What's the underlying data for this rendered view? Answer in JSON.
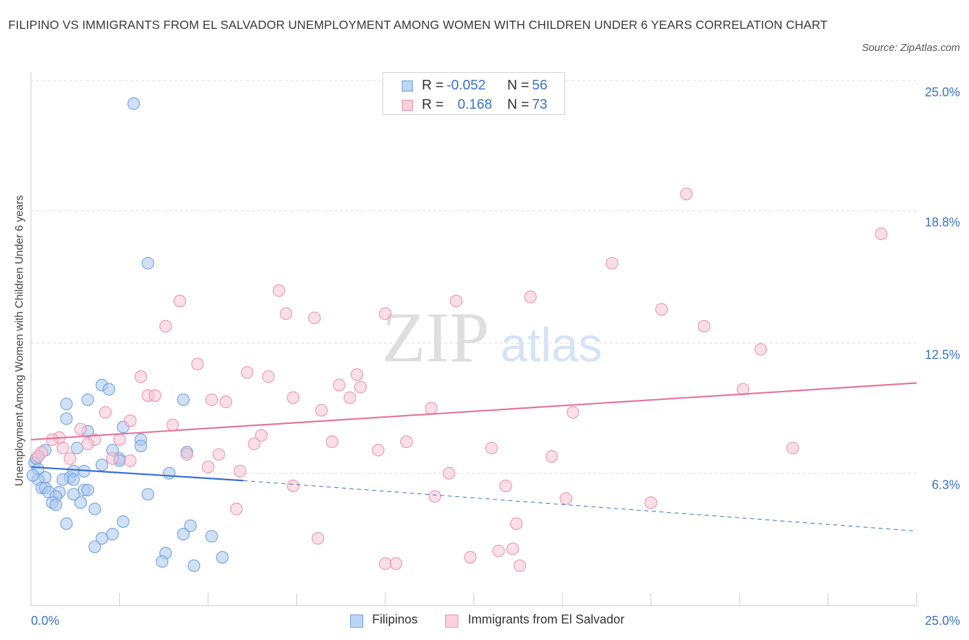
{
  "title": "FILIPINO VS IMMIGRANTS FROM EL SALVADOR UNEMPLOYMENT AMONG WOMEN WITH CHILDREN UNDER 6 YEARS CORRELATION CHART",
  "source": "Source: ZipAtlas.com",
  "watermark": {
    "zip": "ZIP",
    "atlas": "atlas"
  },
  "legend": {
    "r_label": "R =",
    "n_label": "N =",
    "entries": [
      {
        "name": "Filipinos",
        "r": "-0.052",
        "n": "56",
        "color": "#a9c8f0",
        "stroke": "#6d9ede"
      },
      {
        "name": "Immigrants from El Salvador",
        "r": "0.168",
        "n": "73",
        "color": "#f8c5d5",
        "stroke": "#e892ad"
      }
    ]
  },
  "chart_data": {
    "type": "scatter",
    "title": "FILIPINO VS IMMIGRANTS FROM EL SALVADOR UNEMPLOYMENT AMONG WOMEN WITH CHILDREN UNDER 6 YEARS CORRELATION CHART",
    "ylabel": "Unemployment Among Women with Children Under 6 years",
    "xlabel": "",
    "xlim": [
      0,
      25
    ],
    "ylim": [
      0,
      25
    ],
    "x_tick_labels": [
      {
        "value": 0,
        "label": "0.0%"
      },
      {
        "value": 25,
        "label": "25.0%"
      }
    ],
    "y_tick_labels": [
      {
        "value": 6.3,
        "label": "6.3%"
      },
      {
        "value": 12.5,
        "label": "12.5%"
      },
      {
        "value": 18.8,
        "label": "18.8%"
      },
      {
        "value": 25.0,
        "label": "25.0%"
      }
    ],
    "grid": true,
    "legend_position": "top-center",
    "series": [
      {
        "name": "Filipinos",
        "color": "#a9c8f0",
        "stroke": "#6d9ede",
        "trend": {
          "x0": 0,
          "y0": 6.6,
          "x1": 6,
          "y1": 5.95,
          "dashed_to_x": 25,
          "dashed_to_y": 3.55,
          "color": "#2f6fd0"
        },
        "points": [
          [
            2.9,
            23.9
          ],
          [
            3.3,
            16.3
          ],
          [
            1.0,
            9.6
          ],
          [
            0.4,
            7.4
          ],
          [
            0.1,
            6.8
          ],
          [
            0.2,
            6.5
          ],
          [
            0.4,
            6.1
          ],
          [
            0.2,
            6.0
          ],
          [
            0.3,
            5.6
          ],
          [
            0.4,
            5.6
          ],
          [
            0.5,
            5.4
          ],
          [
            0.8,
            5.4
          ],
          [
            0.7,
            5.2
          ],
          [
            0.6,
            4.9
          ],
          [
            0.7,
            4.8
          ],
          [
            1.1,
            6.1
          ],
          [
            1.2,
            6.4
          ],
          [
            1.3,
            7.5
          ],
          [
            1.0,
            8.9
          ],
          [
            1.6,
            9.8
          ],
          [
            2.0,
            10.5
          ],
          [
            2.2,
            10.3
          ],
          [
            2.6,
            8.5
          ],
          [
            1.6,
            8.3
          ],
          [
            2.3,
            7.4
          ],
          [
            2.5,
            7.0
          ],
          [
            2.5,
            6.9
          ],
          [
            3.1,
            7.9
          ],
          [
            3.1,
            7.6
          ],
          [
            2.0,
            6.7
          ],
          [
            1.5,
            6.4
          ],
          [
            0.9,
            6.0
          ],
          [
            1.2,
            6.0
          ],
          [
            1.5,
            5.5
          ],
          [
            1.6,
            5.5
          ],
          [
            1.2,
            5.3
          ],
          [
            1.4,
            4.9
          ],
          [
            1.8,
            4.6
          ],
          [
            3.3,
            5.3
          ],
          [
            2.6,
            4.0
          ],
          [
            1.0,
            3.9
          ],
          [
            2.3,
            3.4
          ],
          [
            2.0,
            3.2
          ],
          [
            1.8,
            2.8
          ],
          [
            3.9,
            6.3
          ],
          [
            4.4,
            7.3
          ],
          [
            4.3,
            9.8
          ],
          [
            4.5,
            3.8
          ],
          [
            4.3,
            3.4
          ],
          [
            5.1,
            3.3
          ],
          [
            3.8,
            2.5
          ],
          [
            3.7,
            2.1
          ],
          [
            5.4,
            2.3
          ],
          [
            4.6,
            1.9
          ],
          [
            0.15,
            7.0
          ],
          [
            0.05,
            6.2
          ]
        ]
      },
      {
        "name": "Immigrants from El Salvador",
        "color": "#f8c5d5",
        "stroke": "#e892ad",
        "trend": {
          "x0": 0,
          "y0": 7.9,
          "x1": 25,
          "y1": 10.6,
          "color": "#e4739a"
        },
        "points": [
          [
            18.5,
            19.6
          ],
          [
            24.0,
            17.7
          ],
          [
            16.4,
            16.3
          ],
          [
            7.0,
            15.0
          ],
          [
            4.2,
            14.5
          ],
          [
            12.0,
            14.5
          ],
          [
            14.1,
            14.7
          ],
          [
            17.8,
            14.1
          ],
          [
            7.2,
            13.9
          ],
          [
            8.0,
            13.7
          ],
          [
            10.0,
            13.9
          ],
          [
            3.8,
            13.3
          ],
          [
            19.0,
            13.3
          ],
          [
            20.6,
            12.2
          ],
          [
            4.7,
            11.5
          ],
          [
            6.1,
            11.1
          ],
          [
            6.7,
            10.9
          ],
          [
            3.1,
            10.9
          ],
          [
            9.2,
            11.0
          ],
          [
            8.7,
            10.5
          ],
          [
            9.3,
            10.4
          ],
          [
            3.3,
            10.0
          ],
          [
            3.5,
            10.0
          ],
          [
            5.1,
            9.8
          ],
          [
            5.5,
            9.7
          ],
          [
            7.4,
            9.9
          ],
          [
            9.0,
            9.9
          ],
          [
            20.1,
            10.3
          ],
          [
            2.1,
            9.2
          ],
          [
            8.2,
            9.3
          ],
          [
            11.3,
            9.4
          ],
          [
            15.3,
            9.2
          ],
          [
            2.8,
            8.8
          ],
          [
            4.0,
            8.6
          ],
          [
            1.4,
            8.4
          ],
          [
            6.5,
            8.1
          ],
          [
            0.8,
            8.0
          ],
          [
            0.6,
            7.9
          ],
          [
            1.8,
            7.9
          ],
          [
            2.5,
            7.9
          ],
          [
            1.6,
            7.7
          ],
          [
            6.3,
            7.7
          ],
          [
            8.5,
            7.8
          ],
          [
            10.6,
            7.8
          ],
          [
            13.0,
            7.5
          ],
          [
            0.9,
            7.5
          ],
          [
            0.3,
            7.3
          ],
          [
            2.3,
            7.0
          ],
          [
            1.1,
            7.0
          ],
          [
            2.8,
            6.9
          ],
          [
            4.4,
            7.2
          ],
          [
            5.3,
            7.2
          ],
          [
            9.8,
            7.4
          ],
          [
            14.7,
            7.1
          ],
          [
            21.5,
            7.5
          ],
          [
            5.0,
            6.6
          ],
          [
            5.9,
            6.4
          ],
          [
            11.8,
            6.3
          ],
          [
            7.4,
            5.7
          ],
          [
            13.4,
            5.7
          ],
          [
            11.4,
            5.2
          ],
          [
            15.1,
            5.1
          ],
          [
            17.5,
            4.9
          ],
          [
            5.8,
            4.6
          ],
          [
            13.7,
            3.9
          ],
          [
            8.1,
            3.2
          ],
          [
            13.6,
            2.7
          ],
          [
            13.2,
            2.6
          ],
          [
            12.4,
            2.3
          ],
          [
            10.0,
            2.0
          ],
          [
            10.3,
            2.0
          ],
          [
            13.8,
            1.9
          ],
          [
            0.2,
            7.1
          ]
        ]
      }
    ]
  }
}
